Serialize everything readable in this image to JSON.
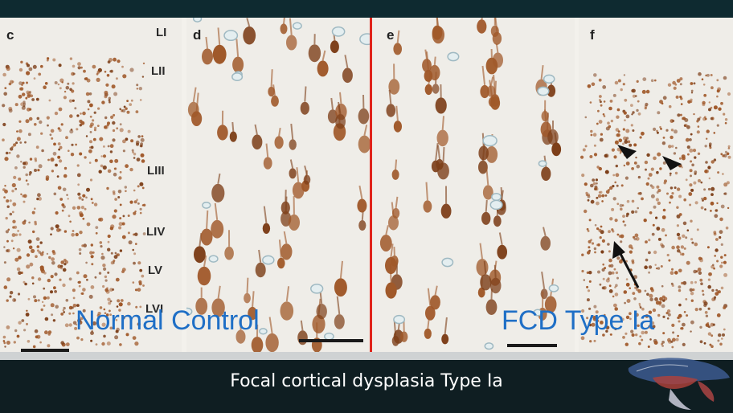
{
  "panels": [
    {
      "letter": "c",
      "kind": "overview-normal"
    },
    {
      "letter": "d",
      "kind": "closeup-normal"
    },
    {
      "letter": "e",
      "kind": "closeup-fcd"
    },
    {
      "letter": "f",
      "kind": "overview-fcd"
    }
  ],
  "layer_labels": [
    "LI",
    "LII",
    "LIII",
    "LIV",
    "LV",
    "LVI"
  ],
  "overlay_labels": {
    "normal": "Normal Control",
    "fcd": "FCD Type Ia"
  },
  "caption": "Focal cortical dysplasia Type Ia",
  "colors": {
    "stain": "#a0592a",
    "stain_dark": "#7d3f19",
    "divider": "#e0241b",
    "label_blue": "#1f6fc6",
    "background_dark": "#0f1e22"
  }
}
